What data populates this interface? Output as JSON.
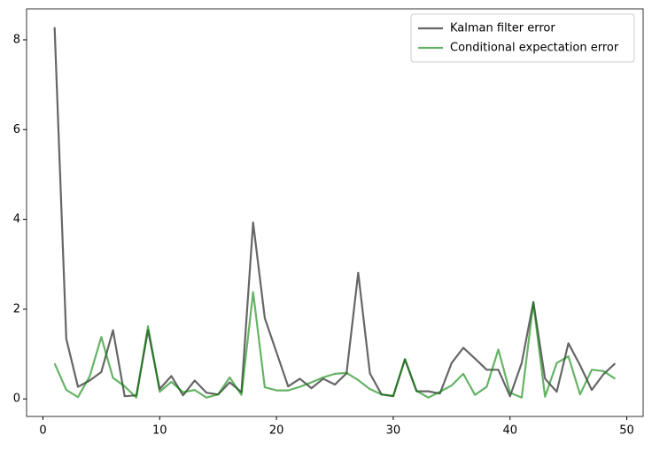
{
  "chart_data": {
    "type": "line",
    "x": [
      1,
      2,
      3,
      4,
      5,
      6,
      7,
      8,
      9,
      10,
      11,
      12,
      13,
      14,
      15,
      16,
      17,
      18,
      19,
      20,
      21,
      22,
      23,
      24,
      25,
      26,
      27,
      28,
      29,
      30,
      31,
      32,
      33,
      34,
      35,
      36,
      37,
      38,
      39,
      40,
      41,
      42,
      43,
      44,
      45,
      46,
      47,
      48,
      49
    ],
    "series": [
      {
        "name": "Kalman filter error",
        "color": "#000000",
        "values": [
          8.28,
          1.34,
          0.27,
          0.41,
          0.6,
          1.53,
          0.06,
          0.08,
          1.53,
          0.22,
          0.51,
          0.08,
          0.41,
          0.14,
          0.1,
          0.37,
          0.15,
          3.93,
          1.8,
          1.04,
          0.28,
          0.45,
          0.24,
          0.45,
          0.32,
          0.57,
          2.81,
          0.57,
          0.1,
          0.06,
          0.88,
          0.17,
          0.17,
          0.12,
          0.8,
          1.14,
          0.9,
          0.65,
          0.65,
          0.06,
          0.8,
          2.16,
          0.45,
          0.16,
          1.24,
          0.75,
          0.2,
          0.55,
          0.79
        ]
      },
      {
        "name": "Conditional expectation error",
        "color": "#008000",
        "values": [
          0.79,
          0.2,
          0.04,
          0.5,
          1.38,
          0.47,
          0.28,
          0.03,
          1.62,
          0.16,
          0.38,
          0.15,
          0.2,
          0.03,
          0.1,
          0.48,
          0.09,
          2.38,
          0.26,
          0.19,
          0.19,
          0.27,
          0.37,
          0.48,
          0.56,
          0.58,
          0.42,
          0.22,
          0.1,
          0.07,
          0.89,
          0.18,
          0.03,
          0.16,
          0.3,
          0.56,
          0.09,
          0.27,
          1.1,
          0.14,
          0.03,
          2.14,
          0.05,
          0.8,
          0.95,
          0.1,
          0.65,
          0.62,
          0.45
        ]
      }
    ],
    "alpha": 0.6,
    "xlim": [
      -1.4,
      51.4
    ],
    "xticks": [
      0,
      10,
      20,
      30,
      40,
      50
    ],
    "ylim": [
      -0.39,
      8.69
    ],
    "yticks": [
      0,
      2,
      4,
      6,
      8
    ],
    "legend": "upper right"
  }
}
